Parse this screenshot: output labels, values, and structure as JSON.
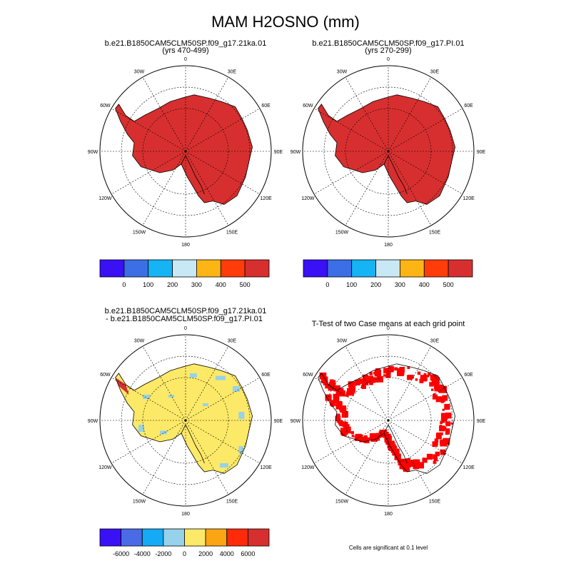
{
  "figure": {
    "title": "MAM H2OSNO (mm)"
  },
  "chart_data": [
    {
      "type": "map",
      "projection": "polar-stereographic-south",
      "title_line1": "b.e21.B1850CAM5CLM50SP.f09_g17.21ka.01",
      "title_line2": "(yrs 470-499)",
      "lon_labels": [
        "0",
        "30E",
        "60E",
        "90E",
        "120E",
        "150E",
        "180",
        "150W",
        "120W",
        "90W",
        "60W",
        "30W"
      ],
      "field_summary": "snow water equivalent > 500 mm over the Antarctic continent",
      "fill_color": "#d72f2f"
    },
    {
      "type": "map",
      "projection": "polar-stereographic-south",
      "title_line1": "b.e21.B1850CAM5CLM50SP.f09_g17.PI.01",
      "title_line2": "(yrs 270-299)",
      "lon_labels": [
        "0",
        "30E",
        "60E",
        "90E",
        "120E",
        "150E",
        "180",
        "150W",
        "120W",
        "90W",
        "60W",
        "30W"
      ],
      "field_summary": "snow water equivalent > 500 mm over the Antarctic continent",
      "fill_color": "#d72f2f"
    },
    {
      "type": "map",
      "projection": "polar-stereographic-south",
      "title_line1": "b.e21.B1850CAM5CLM50SP.f09_g17.21ka.01",
      "title_line2": "- b.e21.B1850CAM5CLM50SP.f09_g17.PI.01",
      "lon_labels": [
        "0",
        "30E",
        "60E",
        "90E",
        "120E",
        "150E",
        "180",
        "150W",
        "120W",
        "90W",
        "60W",
        "30W"
      ],
      "field_summary": "difference mostly 0 to 2000 mm, coastal patches -2000 to 0 mm",
      "fill_color": "#fde968"
    },
    {
      "type": "map",
      "projection": "polar-stereographic-south",
      "title_line1": "T-Test of two Case means at each grid point",
      "lon_labels": [
        "0",
        "30E",
        "60E",
        "90E",
        "120E",
        "150E",
        "180",
        "150W",
        "120W",
        "90W",
        "60W",
        "30W"
      ],
      "field_summary": "significant grid cells along the coast",
      "fill_color": "#ff0000",
      "note": "Cells are significant at 0.1 level"
    }
  ],
  "colorbars": {
    "abs": {
      "colors": [
        "#3a10f5",
        "#3c6ee6",
        "#14b4f5",
        "#c8e8f5",
        "#fcb514",
        "#ff3c0a",
        "#d72f2f"
      ],
      "labels": [
        "0",
        "100",
        "200",
        "300",
        "400",
        "500"
      ]
    },
    "diff": {
      "colors": [
        "#3a10f5",
        "#4a6ae6",
        "#14aaf5",
        "#96d2ea",
        "#fde968",
        "#fca514",
        "#ff2a0a",
        "#d72f2f"
      ],
      "labels": [
        "-6000",
        "-4000",
        "-2000",
        "0",
        "2000",
        "4000",
        "6000"
      ]
    }
  },
  "outline_color": "#000000"
}
